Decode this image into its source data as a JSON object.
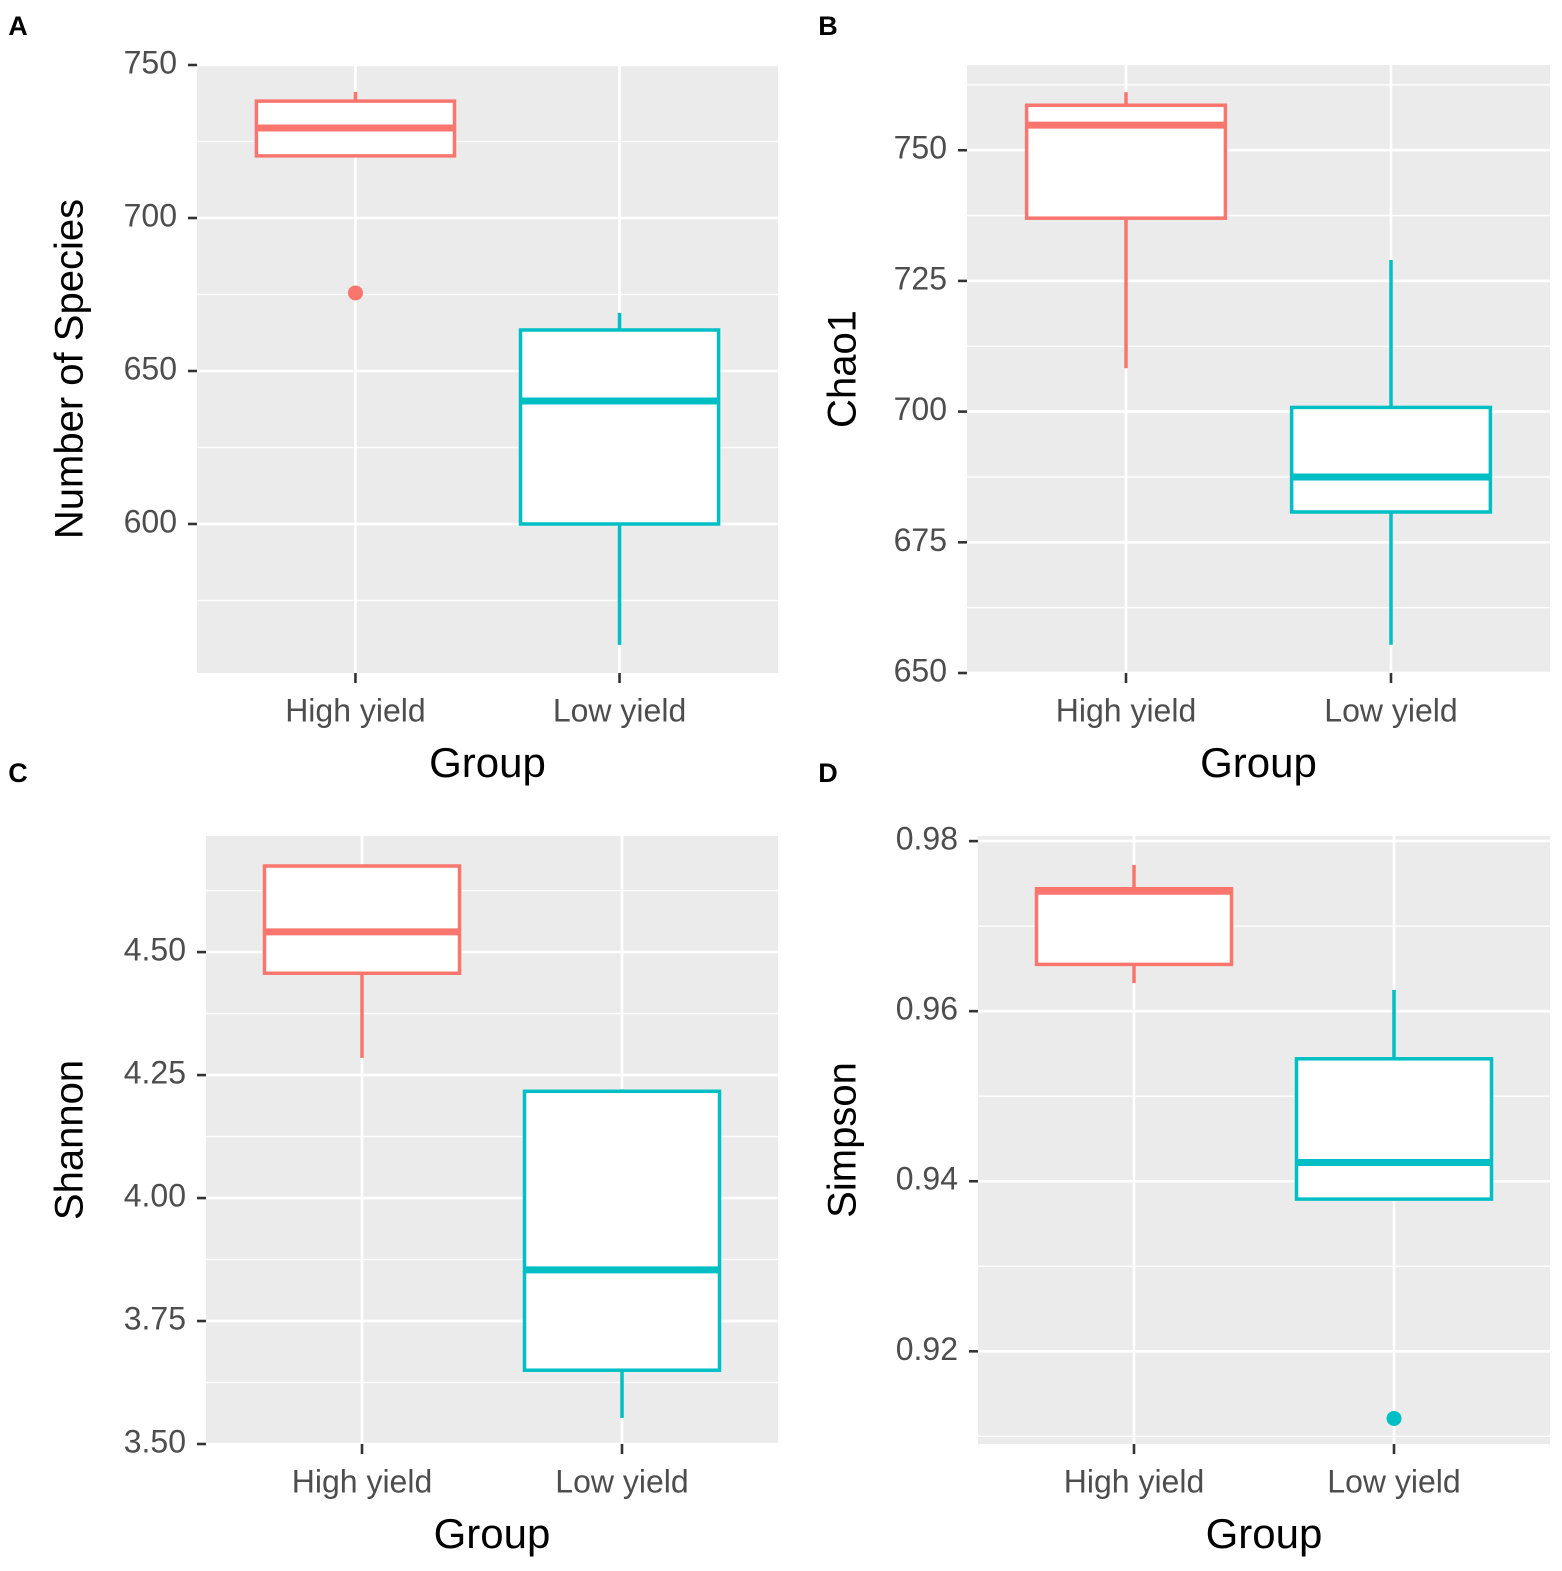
{
  "chart_data": [
    {
      "type": "box",
      "panel_label": "A",
      "y_label": "Number of Species",
      "x_label": "Group",
      "categories": [
        "High yield",
        "Low yield"
      ],
      "colors": [
        "#f8766d",
        "#00bfc4"
      ],
      "boxes": [
        {
          "whisker_low": 720.3,
          "q1": 720.3,
          "median": 729.4,
          "q3": 738.2,
          "whisker_high": 741.2,
          "outliers": [
            675.5
          ]
        },
        {
          "whisker_low": 560.5,
          "q1": 600,
          "median": 640.2,
          "q3": 663.4,
          "whisker_high": 669,
          "outliers": []
        }
      ],
      "ylim": [
        551.3,
        750
      ],
      "yticks": [
        600,
        650,
        700,
        750
      ],
      "grid": true
    },
    {
      "type": "box",
      "panel_label": "B",
      "y_label": "Chao1",
      "x_label": "Group",
      "categories": [
        "High yield",
        "Low yield"
      ],
      "colors": [
        "#f8766d",
        "#00bfc4"
      ],
      "boxes": [
        {
          "whisker_low": 708.3,
          "q1": 737,
          "median": 754.8,
          "q3": 758.6,
          "whisker_high": 761.1,
          "outliers": []
        },
        {
          "whisker_low": 655.4,
          "q1": 680.8,
          "median": 687.5,
          "q3": 700.8,
          "whisker_high": 729,
          "outliers": []
        }
      ],
      "ylim": [
        650,
        766.3
      ],
      "yticks": [
        650,
        675,
        700,
        725,
        750
      ],
      "grid": true
    },
    {
      "type": "box",
      "panel_label": "C",
      "y_label": "Shannon",
      "x_label": "Group",
      "categories": [
        "High yield",
        "Low yield"
      ],
      "colors": [
        "#f8766d",
        "#00bfc4"
      ],
      "boxes": [
        {
          "whisker_low": 4.285,
          "q1": 4.457,
          "median": 4.541,
          "q3": 4.675,
          "whisker_high": 4.675,
          "outliers": []
        },
        {
          "whisker_low": 3.553,
          "q1": 3.65,
          "median": 3.854,
          "q3": 4.217,
          "whisker_high": 4.221,
          "outliers": []
        }
      ],
      "ylim": [
        3.5,
        4.736
      ],
      "yticks": [
        {
          "value": 3.5,
          "label": "3.50"
        },
        3.75,
        {
          "value": 4,
          "label": "4.00"
        },
        4.25,
        {
          "value": 4.5,
          "label": "4.50"
        }
      ],
      "grid": true
    },
    {
      "type": "box",
      "panel_label": "D",
      "y_label": "Simpson",
      "x_label": "Group",
      "categories": [
        "High yield",
        "Low yield"
      ],
      "colors": [
        "#f8766d",
        "#00bfc4"
      ],
      "boxes": [
        {
          "whisker_low": 0.9633,
          "q1": 0.9655,
          "median": 0.9741,
          "q3": 0.9744,
          "whisker_high": 0.9772,
          "outliers": []
        },
        {
          "whisker_low": 0.9379,
          "q1": 0.9379,
          "median": 0.9422,
          "q3": 0.9544,
          "whisker_high": 0.9625,
          "outliers": [
            0.9121
          ]
        }
      ],
      "ylim": [
        0.9091,
        0.9806
      ],
      "yticks": [
        0.92,
        0.94,
        0.96,
        0.98
      ],
      "grid": true
    }
  ]
}
